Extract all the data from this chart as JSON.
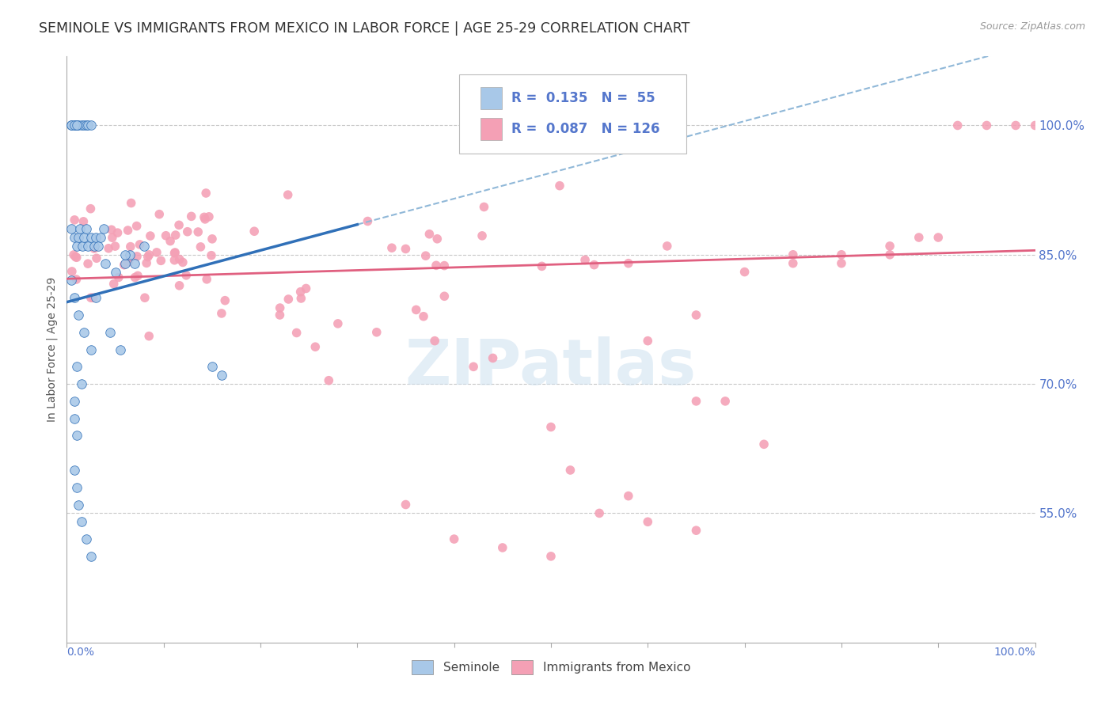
{
  "title": "SEMINOLE VS IMMIGRANTS FROM MEXICO IN LABOR FORCE | AGE 25-29 CORRELATION CHART",
  "source": "Source: ZipAtlas.com",
  "ylabel": "In Labor Force | Age 25-29",
  "xlim": [
    0.0,
    1.0
  ],
  "ylim": [
    0.4,
    1.08
  ],
  "yticks": [
    0.55,
    0.7,
    0.85,
    1.0
  ],
  "ytick_labels": [
    "55.0%",
    "70.0%",
    "85.0%",
    "100.0%"
  ],
  "seminole_color": "#a8c8e8",
  "mexico_color": "#f4a0b5",
  "trend_seminole_solid_color": "#3070b8",
  "trend_seminole_dash_color": "#90b8d8",
  "trend_mexico_color": "#e06080",
  "background_color": "#ffffff",
  "grid_color": "#c8c8c8",
  "tick_color": "#5577cc",
  "seminole_label": "Seminole",
  "mexico_label": "Immigrants from Mexico",
  "legend_r1": "R =  0.135",
  "legend_n1": "N =  55",
  "legend_r2": "R =  0.087",
  "legend_n2": "N = 126",
  "watermark": "ZIPatlas",
  "source_text": "Source: ZipAtlas.com"
}
